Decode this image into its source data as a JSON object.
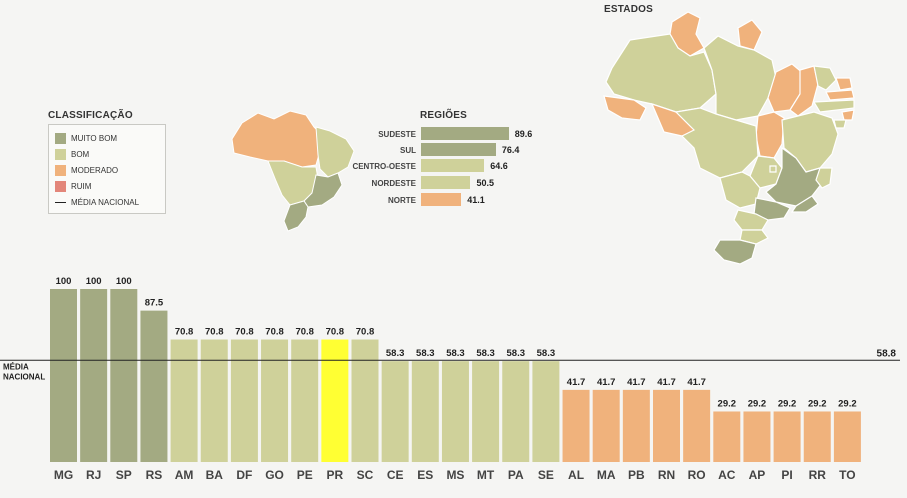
{
  "legend": {
    "title": "CLASSIFICAÇÃO",
    "items": [
      {
        "label": "MUITO BOM",
        "color": "#a3aa82"
      },
      {
        "label": "BOM",
        "color": "#cfd19a"
      },
      {
        "label": "MODERADO",
        "color": "#f0b27c"
      },
      {
        "label": "RUIM",
        "color": "#e3867a"
      }
    ],
    "average_label": "MÉDIA NACIONAL"
  },
  "regions": {
    "title": "REGIÕES",
    "items": [
      {
        "label": "SUDESTE",
        "value": 89.6,
        "value_text": "89.6",
        "color": "#a3aa82"
      },
      {
        "label": "SUL",
        "value": 76.4,
        "value_text": "76.4",
        "color": "#a3aa82"
      },
      {
        "label": "CENTRO-OESTE",
        "value": 64.6,
        "value_text": "64.6",
        "color": "#cfd19a"
      },
      {
        "label": "NORDESTE",
        "value": 50.5,
        "value_text": "50.5",
        "color": "#cfd19a"
      },
      {
        "label": "NORTE",
        "value": 41.1,
        "value_text": "41.1",
        "color": "#f0b27c"
      }
    ]
  },
  "states_title": "ESTADOS",
  "colors": {
    "muito_bom": "#a3aa82",
    "bom": "#cfd19a",
    "moderado": "#f0b27c",
    "highlight": "#ffff33"
  },
  "chart_data": {
    "type": "bar",
    "categories": [
      "MG",
      "RJ",
      "SP",
      "RS",
      "AM",
      "BA",
      "DF",
      "GO",
      "PE",
      "PR",
      "SC",
      "CE",
      "ES",
      "MS",
      "MT",
      "PA",
      "SE",
      "AL",
      "MA",
      "PB",
      "RN",
      "RO",
      "AC",
      "AP",
      "PI",
      "RR",
      "TO"
    ],
    "values": [
      100,
      100,
      100,
      87.5,
      70.8,
      70.8,
      70.8,
      70.8,
      70.8,
      70.8,
      70.8,
      58.3,
      58.3,
      58.3,
      58.3,
      58.3,
      58.3,
      41.7,
      41.7,
      41.7,
      41.7,
      41.7,
      29.2,
      29.2,
      29.2,
      29.2,
      29.2
    ],
    "value_labels": [
      "100",
      "100",
      "100",
      "87.5",
      "70.8",
      "70.8",
      "70.8",
      "70.8",
      "70.8",
      "70.8",
      "70.8",
      "58.3",
      "58.3",
      "58.3",
      "58.3",
      "58.3",
      "58.3",
      "41.7",
      "41.7",
      "41.7",
      "41.7",
      "41.7",
      "29.2",
      "29.2",
      "29.2",
      "29.2",
      "29.2"
    ],
    "classes": [
      "muito_bom",
      "muito_bom",
      "muito_bom",
      "muito_bom",
      "bom",
      "bom",
      "bom",
      "bom",
      "bom",
      "highlight",
      "bom",
      "bom",
      "bom",
      "bom",
      "bom",
      "bom",
      "bom",
      "moderado",
      "moderado",
      "moderado",
      "moderado",
      "moderado",
      "moderado",
      "moderado",
      "moderado",
      "moderado",
      "moderado"
    ],
    "reference_line": {
      "label": "MÉDIA NACIONAL",
      "value": 58.8,
      "value_text": "58.8"
    },
    "ylim": [
      0,
      100
    ]
  }
}
